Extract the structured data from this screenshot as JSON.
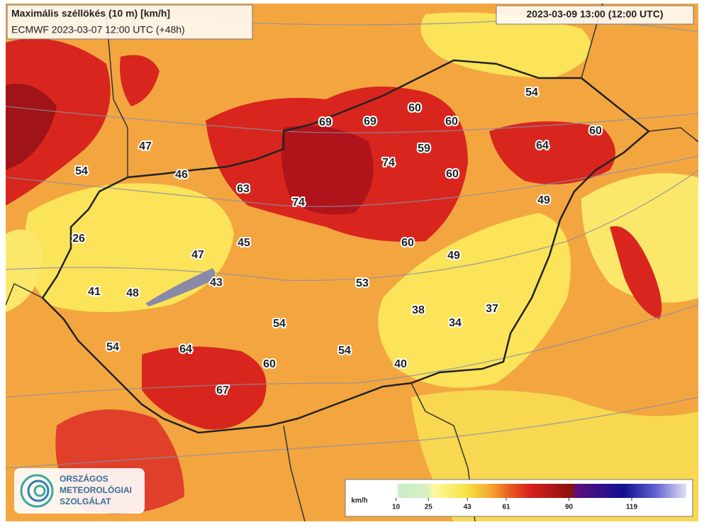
{
  "header": {
    "title": "Maximális széllökés (10 m) [km/h]",
    "subtitle": "ECMWF 2023-03-07 12:00 UTC (+48h)",
    "valid_time": "2023-03-09 13:00 (12:00 UTC)"
  },
  "stations": [
    69,
    69,
    60,
    60,
    54,
    60,
    47,
    59,
    74,
    64,
    54,
    46,
    60,
    63,
    74,
    49,
    26,
    45,
    60,
    47,
    49,
    43,
    53,
    41,
    48,
    38,
    37,
    34,
    54,
    54,
    64,
    54,
    60,
    40,
    67
  ],
  "legend": {
    "unit": "km/h",
    "ticks": [
      10,
      25,
      43,
      61,
      90,
      119
    ]
  },
  "logo": {
    "lines": [
      "ORSZÁGOS",
      "METEOROLÓGIAI",
      "SZOLGÁLAT"
    ]
  }
}
